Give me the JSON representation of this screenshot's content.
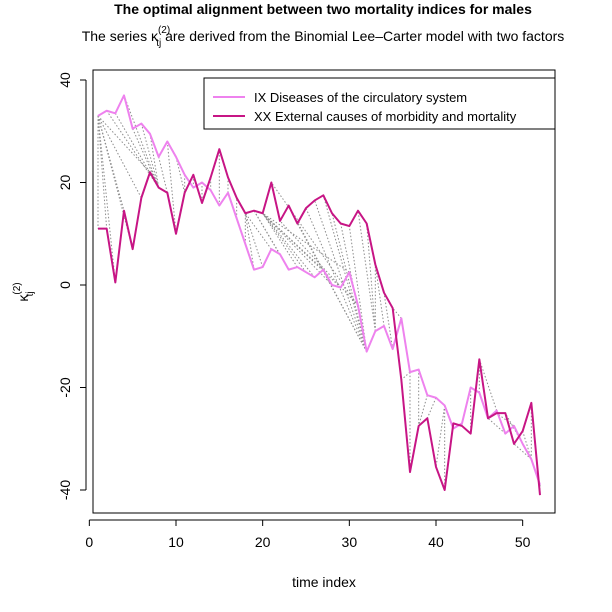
{
  "chart_data": {
    "type": "line",
    "title": "The optimal alignment between two mortality indices for males",
    "subtitle": {
      "prefix": "The series ",
      "symbol": "κ",
      "symbol_sub": "tj",
      "symbol_sup": "(2)",
      "suffix": " are derived from the Binomial Lee–Carter model with two factors"
    },
    "xlabel": "time index",
    "ylabel": {
      "symbol": "κ",
      "sub": "tj",
      "sup": "(2)"
    },
    "xlim": [
      0,
      53
    ],
    "ylim": [
      -44,
      41
    ],
    "xticks": [
      0,
      10,
      20,
      30,
      40,
      50
    ],
    "yticks": [
      -40,
      -20,
      0,
      20,
      40
    ],
    "x": [
      1,
      2,
      3,
      4,
      5,
      6,
      7,
      8,
      9,
      10,
      11,
      12,
      13,
      14,
      15,
      16,
      17,
      18,
      19,
      20,
      21,
      22,
      23,
      24,
      25,
      26,
      27,
      28,
      29,
      30,
      31,
      32,
      33,
      34,
      35,
      36,
      37,
      38,
      39,
      40,
      41,
      42,
      43,
      44,
      45,
      46,
      47,
      48,
      49,
      50,
      51,
      52
    ],
    "series": [
      {
        "name": "IX Diseases of the circulatory system",
        "color": "#EE82EE",
        "values": [
          33,
          34,
          33.5,
          37,
          30.5,
          31.5,
          29.5,
          25,
          28,
          25,
          21.5,
          19,
          20,
          18.5,
          15.5,
          18,
          13,
          8,
          3,
          3.5,
          7,
          6,
          3,
          3.5,
          2.5,
          1.5,
          3,
          0,
          -0.5,
          2.5,
          -4,
          -13,
          -9,
          -8,
          -12.5,
          -6.5,
          -17,
          -16.5,
          -21.5,
          -22,
          -23.5,
          -28,
          -27,
          -20,
          -21,
          -26,
          -24.5,
          -29,
          -27.5,
          -31,
          -34,
          -39
        ]
      },
      {
        "name": "XX External causes of morbidity and mortality",
        "color": "#C71585",
        "values": [
          11,
          11,
          0.5,
          14.5,
          7,
          17,
          22,
          19,
          18,
          10,
          18,
          21.5,
          16,
          21,
          26.5,
          21,
          17,
          14,
          14.5,
          14,
          20,
          12.5,
          15.5,
          12,
          15,
          16.5,
          17.5,
          14,
          12,
          11.5,
          14.5,
          12,
          4,
          -1.5,
          -4.5,
          -18.5,
          -36.5,
          -27.5,
          -26,
          -35.5,
          -40,
          -27,
          -27.5,
          -29,
          -14.5,
          -26,
          -25,
          -25,
          -31,
          -28.5,
          -23,
          -41
        ]
      }
    ],
    "alignment": {
      "color": "#8C8C8C",
      "pairs": [
        [
          1,
          1
        ],
        [
          1,
          2
        ],
        [
          1,
          3
        ],
        [
          1,
          4
        ],
        [
          1,
          5
        ],
        [
          1,
          6
        ],
        [
          1,
          7
        ],
        [
          2,
          8
        ],
        [
          3,
          8
        ],
        [
          4,
          8
        ],
        [
          5,
          8
        ],
        [
          6,
          8
        ],
        [
          7,
          8
        ],
        [
          8,
          9
        ],
        [
          9,
          10
        ],
        [
          10,
          11
        ],
        [
          11,
          11
        ],
        [
          12,
          12
        ],
        [
          13,
          13
        ],
        [
          14,
          14
        ],
        [
          15,
          15
        ],
        [
          16,
          16
        ],
        [
          17,
          17
        ],
        [
          18,
          18
        ],
        [
          19,
          18
        ],
        [
          20,
          18
        ],
        [
          21,
          18
        ],
        [
          22,
          19
        ],
        [
          23,
          19
        ],
        [
          24,
          20
        ],
        [
          25,
          20
        ],
        [
          26,
          20
        ],
        [
          27,
          20
        ],
        [
          28,
          20
        ],
        [
          29,
          20
        ],
        [
          30,
          20
        ],
        [
          31,
          21
        ],
        [
          31,
          22
        ],
        [
          32,
          23
        ],
        [
          32,
          24
        ],
        [
          32,
          25
        ],
        [
          32,
          26
        ],
        [
          32,
          27
        ],
        [
          32,
          28
        ],
        [
          32,
          29
        ],
        [
          32,
          30
        ],
        [
          33,
          31
        ],
        [
          33,
          32
        ],
        [
          33,
          33
        ],
        [
          34,
          33
        ],
        [
          35,
          34
        ],
        [
          36,
          35
        ],
        [
          37,
          36
        ],
        [
          37,
          37
        ],
        [
          38,
          38
        ],
        [
          39,
          38
        ],
        [
          40,
          39
        ],
        [
          41,
          40
        ],
        [
          41,
          41
        ],
        [
          42,
          42
        ],
        [
          43,
          43
        ],
        [
          44,
          44
        ],
        [
          45,
          45
        ],
        [
          46,
          45
        ],
        [
          47,
          45
        ],
        [
          48,
          46
        ],
        [
          49,
          47
        ],
        [
          50,
          48
        ],
        [
          51,
          49
        ],
        [
          51,
          50
        ],
        [
          51,
          51
        ],
        [
          52,
          52
        ]
      ]
    },
    "legend": {
      "position": "top-right"
    },
    "grid": false
  }
}
